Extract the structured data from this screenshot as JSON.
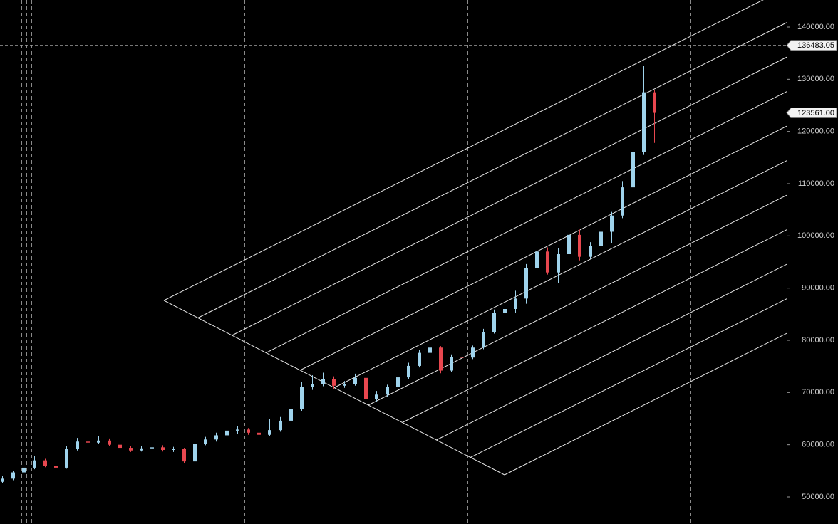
{
  "chart_data": {
    "type": "candlestick",
    "up_color": "#9fd3ec",
    "down_color": "#e8474f",
    "ylim": [
      44818,
      145182
    ],
    "yticks": [
      {
        "value": 50000,
        "label": "50000.00"
      },
      {
        "value": 60000,
        "label": "60000.00"
      },
      {
        "value": 70000,
        "label": "70000.00"
      },
      {
        "value": 80000,
        "label": "80000.00"
      },
      {
        "value": 90000,
        "label": "90000.00"
      },
      {
        "value": 100000,
        "label": "100000.00"
      },
      {
        "value": 110000,
        "label": "110000.00"
      },
      {
        "value": 120000,
        "label": "120000.00"
      },
      {
        "value": 130000,
        "label": "130000.00"
      },
      {
        "value": 140000,
        "label": "140000.00"
      }
    ],
    "crosshair_price": 136483.05,
    "last_price": {
      "value": 123561,
      "label": "123561.00"
    },
    "series": {
      "open": [
        52900,
        53500,
        54700,
        55600,
        57000,
        56000,
        55600,
        59200,
        60600,
        60400,
        60800,
        60000,
        59400,
        58900,
        59300,
        59500,
        59000,
        59200,
        56800,
        60200,
        61000,
        61800,
        62700,
        62900,
        62300,
        61900,
        62800,
        64600,
        66800,
        71000,
        71600,
        72600,
        71300,
        71600,
        72800,
        68800,
        69600,
        71000,
        72900,
        75100,
        77600,
        78600,
        74200,
        76800,
        76700,
        78600,
        81600,
        85200,
        86000,
        88000,
        93800,
        97000,
        93000,
        96500,
        100200,
        96000,
        98000,
        100800,
        103900,
        109300,
        116000,
        127500
      ],
      "high": [
        54000,
        55000,
        55900,
        57800,
        57300,
        56400,
        59800,
        61300,
        61900,
        61600,
        61200,
        60400,
        59700,
        59800,
        60100,
        59900,
        59600,
        59400,
        60600,
        61500,
        62300,
        64600,
        63600,
        63200,
        62700,
        64900,
        65300,
        67400,
        72000,
        73300,
        73800,
        73100,
        72200,
        73600,
        73500,
        70300,
        71500,
        73500,
        75700,
        78200,
        79600,
        78900,
        77300,
        79100,
        79000,
        82200,
        85900,
        86800,
        89500,
        94600,
        99600,
        97800,
        97700,
        101900,
        101200,
        98800,
        102200,
        104600,
        110500,
        117200,
        132600,
        128000
      ],
      "low": [
        52600,
        53200,
        54400,
        55300,
        55700,
        55000,
        55400,
        58900,
        60100,
        60100,
        59700,
        59000,
        58600,
        58700,
        59000,
        58700,
        58600,
        56500,
        56500,
        59900,
        60600,
        61500,
        62100,
        61900,
        61300,
        61600,
        62500,
        64300,
        66500,
        70500,
        71200,
        70600,
        70900,
        71300,
        67800,
        68200,
        69200,
        70700,
        72600,
        74800,
        77300,
        73700,
        73900,
        76300,
        76400,
        78300,
        81300,
        84000,
        85300,
        87000,
        93400,
        92600,
        91000,
        96000,
        95300,
        95600,
        97500,
        98600,
        103400,
        109000,
        115500,
        117800
      ],
      "close": [
        53500,
        54700,
        55600,
        57000,
        56000,
        55600,
        59200,
        60600,
        60400,
        60800,
        60000,
        59400,
        58900,
        59300,
        59500,
        59000,
        59200,
        56800,
        60200,
        61000,
        61800,
        62700,
        62900,
        62300,
        61900,
        62800,
        64600,
        66800,
        71000,
        71600,
        72600,
        71300,
        71600,
        72800,
        68800,
        69600,
        71000,
        72900,
        75100,
        77600,
        78600,
        74200,
        76800,
        76700,
        78600,
        81600,
        85200,
        86000,
        88000,
        93800,
        97000,
        93000,
        96500,
        100200,
        96000,
        98000,
        100800,
        103900,
        109300,
        116000,
        127500,
        123561
      ]
    }
  }
}
